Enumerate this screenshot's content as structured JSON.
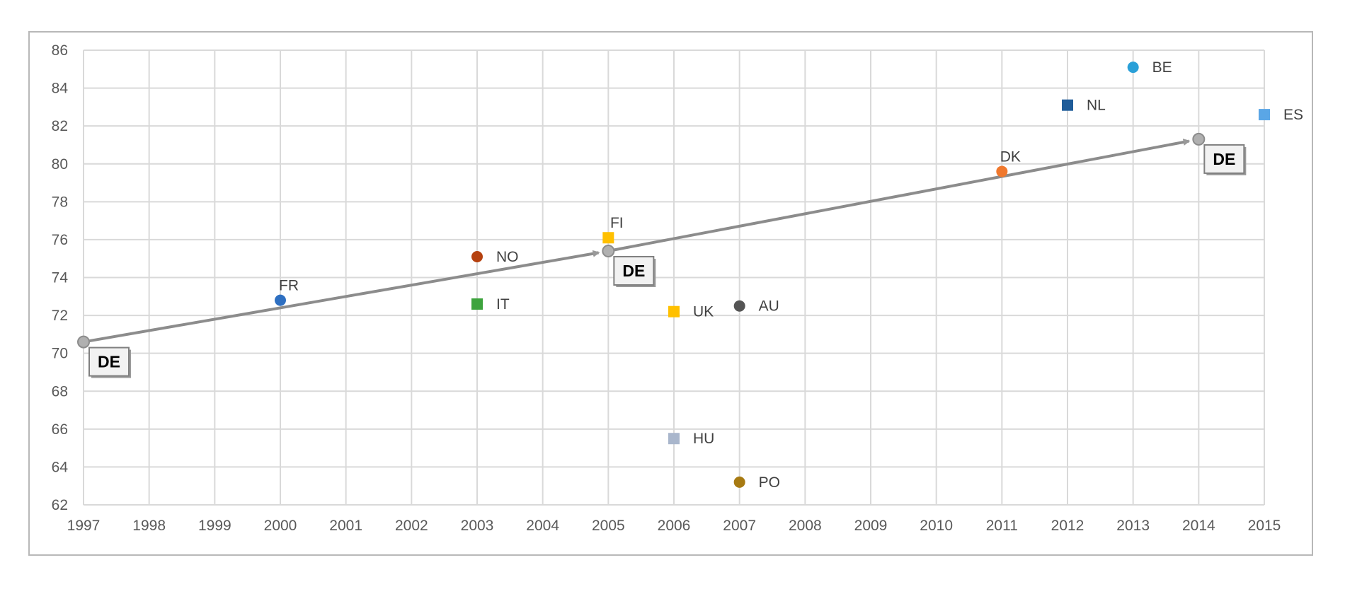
{
  "chart_data": {
    "type": "scatter",
    "title": "",
    "xlabel": "",
    "ylabel": "",
    "xlim": [
      1997,
      2015
    ],
    "ylim": [
      62,
      86
    ],
    "x_ticks": [
      "1997",
      "1998",
      "1999",
      "2000",
      "2001",
      "2002",
      "2003",
      "2004",
      "2005",
      "2006",
      "2007",
      "2008",
      "2009",
      "2010",
      "2011",
      "2012",
      "2013",
      "2014",
      "2015"
    ],
    "y_ticks": [
      "62",
      "64",
      "66",
      "68",
      "70",
      "72",
      "74",
      "76",
      "78",
      "80",
      "82",
      "84",
      "86"
    ],
    "grid": true,
    "points": [
      {
        "label": "FR",
        "x": 2000,
        "y": 72.8,
        "color": "#2e6fc1",
        "shape": "circle",
        "label_pos": "above"
      },
      {
        "label": "NO",
        "x": 2003,
        "y": 75.1,
        "color": "#b5410f",
        "shape": "circle",
        "label_pos": "right"
      },
      {
        "label": "IT",
        "x": 2003,
        "y": 72.6,
        "color": "#3da33d",
        "shape": "square",
        "label_pos": "right"
      },
      {
        "label": "FI",
        "x": 2005,
        "y": 76.1,
        "color": "#ffc000",
        "shape": "square",
        "label_pos": "above"
      },
      {
        "label": "UK",
        "x": 2006,
        "y": 72.2,
        "color": "#ffc000",
        "shape": "square",
        "label_pos": "right"
      },
      {
        "label": "HU",
        "x": 2006,
        "y": 65.5,
        "color": "#a9b6cc",
        "shape": "square",
        "label_pos": "right"
      },
      {
        "label": "AU",
        "x": 2007,
        "y": 72.5,
        "color": "#555555",
        "shape": "circle",
        "label_pos": "right"
      },
      {
        "label": "PO",
        "x": 2007,
        "y": 63.2,
        "color": "#a77a12",
        "shape": "circle",
        "label_pos": "right"
      },
      {
        "label": "DK",
        "x": 2011,
        "y": 79.6,
        "color": "#f0782d",
        "shape": "circle",
        "label_pos": "above"
      },
      {
        "label": "NL",
        "x": 2012,
        "y": 83.1,
        "color": "#1f5c99",
        "shape": "square",
        "label_pos": "right"
      },
      {
        "label": "BE",
        "x": 2013,
        "y": 85.1,
        "color": "#2aa0d8",
        "shape": "circle",
        "label_pos": "right"
      },
      {
        "label": "ES",
        "x": 2015,
        "y": 82.6,
        "color": "#5aa6e6",
        "shape": "square",
        "label_pos": "right"
      }
    ],
    "series": [
      {
        "name": "DE",
        "color": "#8c8c8c",
        "points": [
          {
            "x": 1997,
            "y": 70.6
          },
          {
            "x": 2005,
            "y": 75.4
          },
          {
            "x": 2014,
            "y": 81.3
          }
        ]
      }
    ]
  }
}
